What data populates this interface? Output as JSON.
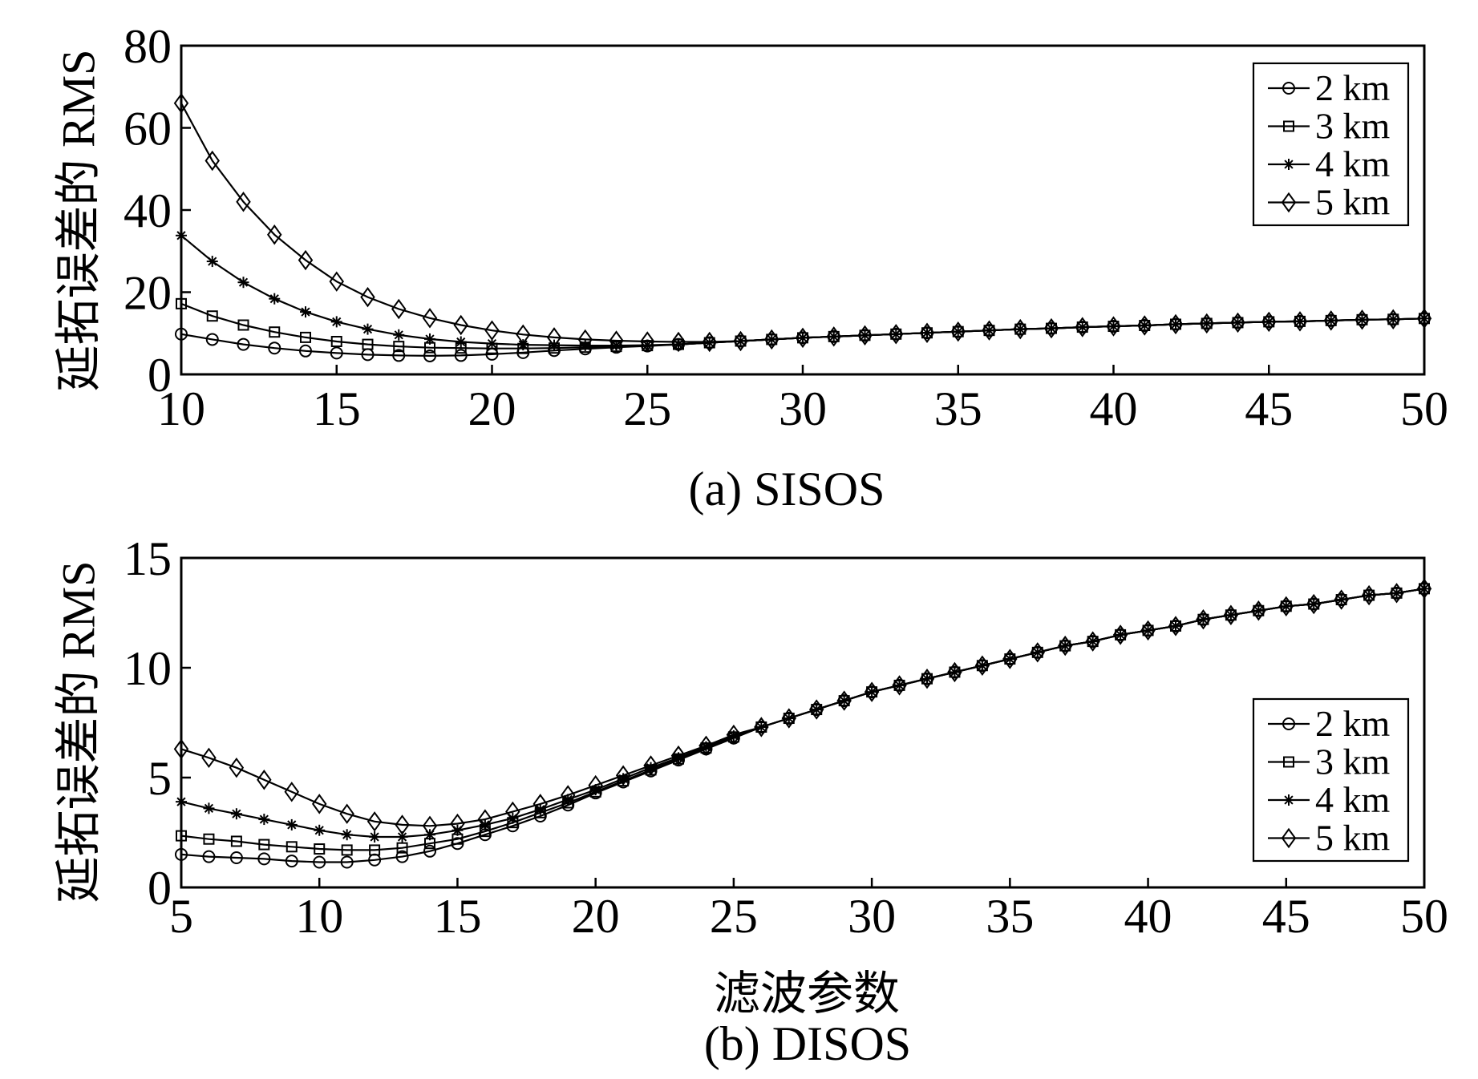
{
  "chart_data": [
    {
      "type": "line",
      "caption": "(a) SISOS",
      "ylabel": "延拓误差的 RMS",
      "xlim": [
        10,
        50
      ],
      "ylim": [
        0,
        80
      ],
      "xticks": [
        10,
        15,
        20,
        25,
        30,
        35,
        40,
        45,
        50
      ],
      "yticks": [
        0,
        20,
        40,
        60,
        80
      ],
      "grid": false,
      "legend": "upper-right",
      "x": [
        10,
        11,
        12,
        13,
        14,
        15,
        16,
        17,
        18,
        19,
        20,
        21,
        22,
        23,
        24,
        25,
        26,
        27,
        28,
        29,
        30,
        31,
        32,
        33,
        34,
        35,
        36,
        37,
        38,
        39,
        40,
        41,
        42,
        43,
        44,
        45,
        46,
        47,
        48,
        49,
        50
      ],
      "series": [
        {
          "name": "2 km",
          "marker": "circle",
          "color": "#000000",
          "values": [
            9.8,
            8.5,
            7.3,
            6.4,
            5.7,
            5.2,
            4.8,
            4.6,
            4.5,
            4.6,
            4.9,
            5.3,
            5.8,
            6.2,
            6.6,
            6.9,
            7.3,
            7.7,
            8.1,
            8.5,
            8.9,
            9.2,
            9.5,
            9.8,
            10.1,
            10.4,
            10.7,
            11.0,
            11.2,
            11.5,
            11.7,
            11.9,
            12.2,
            12.4,
            12.6,
            12.8,
            12.9,
            13.1,
            13.3,
            13.4,
            13.6
          ]
        },
        {
          "name": "3 km",
          "marker": "square",
          "color": "#000000",
          "values": [
            17.2,
            14.2,
            12.0,
            10.3,
            9.0,
            8.0,
            7.3,
            6.8,
            6.5,
            6.4,
            6.3,
            6.3,
            6.4,
            6.6,
            6.8,
            7.0,
            7.3,
            7.7,
            8.1,
            8.5,
            8.9,
            9.2,
            9.5,
            9.8,
            10.1,
            10.4,
            10.7,
            11.0,
            11.2,
            11.5,
            11.7,
            11.9,
            12.2,
            12.4,
            12.6,
            12.8,
            12.9,
            13.1,
            13.3,
            13.4,
            13.6
          ]
        },
        {
          "name": "4 km",
          "marker": "asterisk",
          "color": "#000000",
          "values": [
            33.8,
            27.5,
            22.4,
            18.4,
            15.2,
            12.8,
            11.0,
            9.6,
            8.6,
            7.9,
            7.5,
            7.2,
            7.1,
            7.0,
            7.0,
            7.1,
            7.3,
            7.7,
            8.1,
            8.5,
            8.9,
            9.2,
            9.5,
            9.8,
            10.1,
            10.4,
            10.7,
            11.0,
            11.2,
            11.5,
            11.7,
            11.9,
            12.2,
            12.4,
            12.6,
            12.8,
            12.9,
            13.1,
            13.3,
            13.4,
            13.6
          ]
        },
        {
          "name": "5 km",
          "marker": "diamond",
          "color": "#000000",
          "values": [
            66.0,
            52.0,
            42.0,
            34.0,
            27.8,
            22.6,
            18.8,
            15.9,
            13.7,
            12.0,
            10.7,
            9.7,
            9.0,
            8.5,
            8.2,
            8.0,
            7.9,
            7.9,
            8.1,
            8.5,
            8.9,
            9.2,
            9.5,
            9.8,
            10.1,
            10.4,
            10.7,
            11.0,
            11.2,
            11.5,
            11.7,
            11.9,
            12.2,
            12.4,
            12.6,
            12.8,
            12.9,
            13.1,
            13.3,
            13.4,
            13.6
          ]
        }
      ]
    },
    {
      "type": "line",
      "caption": "(b) DISOS",
      "xlabel": "滤波参数",
      "ylabel": "延拓误差的 RMS",
      "xlim": [
        5,
        50
      ],
      "ylim": [
        0,
        15
      ],
      "xticks": [
        5,
        10,
        15,
        20,
        25,
        30,
        35,
        40,
        45,
        50
      ],
      "yticks": [
        0,
        5,
        10,
        15
      ],
      "grid": false,
      "legend": "lower-right",
      "x": [
        5,
        6,
        7,
        8,
        9,
        10,
        11,
        12,
        13,
        14,
        15,
        16,
        17,
        18,
        19,
        20,
        21,
        22,
        23,
        24,
        25,
        26,
        27,
        28,
        29,
        30,
        31,
        32,
        33,
        34,
        35,
        36,
        37,
        38,
        39,
        40,
        41,
        42,
        43,
        44,
        45,
        46,
        47,
        48,
        49,
        50
      ],
      "series": [
        {
          "name": "2 km",
          "marker": "circle",
          "color": "#000000",
          "values": [
            1.5,
            1.4,
            1.35,
            1.3,
            1.2,
            1.15,
            1.15,
            1.25,
            1.4,
            1.65,
            2.0,
            2.4,
            2.8,
            3.25,
            3.75,
            4.3,
            4.8,
            5.3,
            5.8,
            6.3,
            6.8,
            7.3,
            7.7,
            8.1,
            8.5,
            8.9,
            9.2,
            9.5,
            9.8,
            10.1,
            10.4,
            10.7,
            11.0,
            11.2,
            11.5,
            11.7,
            11.9,
            12.2,
            12.4,
            12.6,
            12.8,
            12.9,
            13.1,
            13.3,
            13.4,
            13.6
          ]
        },
        {
          "name": "3 km",
          "marker": "square",
          "color": "#000000",
          "values": [
            2.35,
            2.2,
            2.1,
            1.95,
            1.85,
            1.75,
            1.7,
            1.7,
            1.8,
            2.0,
            2.2,
            2.55,
            2.95,
            3.4,
            3.85,
            4.35,
            4.85,
            5.35,
            5.85,
            6.35,
            6.85,
            7.3,
            7.7,
            8.1,
            8.5,
            8.9,
            9.2,
            9.5,
            9.8,
            10.1,
            10.4,
            10.7,
            11.0,
            11.2,
            11.5,
            11.7,
            11.9,
            12.2,
            12.4,
            12.6,
            12.8,
            12.9,
            13.1,
            13.3,
            13.4,
            13.6
          ]
        },
        {
          "name": "4 km",
          "marker": "asterisk",
          "color": "#000000",
          "values": [
            3.9,
            3.6,
            3.35,
            3.1,
            2.85,
            2.6,
            2.4,
            2.3,
            2.3,
            2.4,
            2.6,
            2.85,
            3.15,
            3.55,
            4.0,
            4.45,
            4.95,
            5.45,
            5.9,
            6.4,
            6.9,
            7.3,
            7.7,
            8.1,
            8.5,
            8.9,
            9.2,
            9.5,
            9.8,
            10.1,
            10.4,
            10.7,
            11.0,
            11.2,
            11.5,
            11.7,
            11.9,
            12.2,
            12.4,
            12.6,
            12.8,
            12.9,
            13.1,
            13.3,
            13.4,
            13.6
          ]
        },
        {
          "name": "5 km",
          "marker": "diamond",
          "color": "#000000",
          "values": [
            6.3,
            5.9,
            5.45,
            4.9,
            4.35,
            3.8,
            3.35,
            3.0,
            2.85,
            2.8,
            2.9,
            3.1,
            3.45,
            3.8,
            4.2,
            4.65,
            5.1,
            5.55,
            6.0,
            6.45,
            6.95,
            7.3,
            7.7,
            8.1,
            8.5,
            8.9,
            9.2,
            9.5,
            9.8,
            10.1,
            10.4,
            10.7,
            11.0,
            11.2,
            11.5,
            11.7,
            11.9,
            12.2,
            12.4,
            12.6,
            12.8,
            12.9,
            13.1,
            13.3,
            13.4,
            13.6
          ]
        }
      ]
    }
  ]
}
